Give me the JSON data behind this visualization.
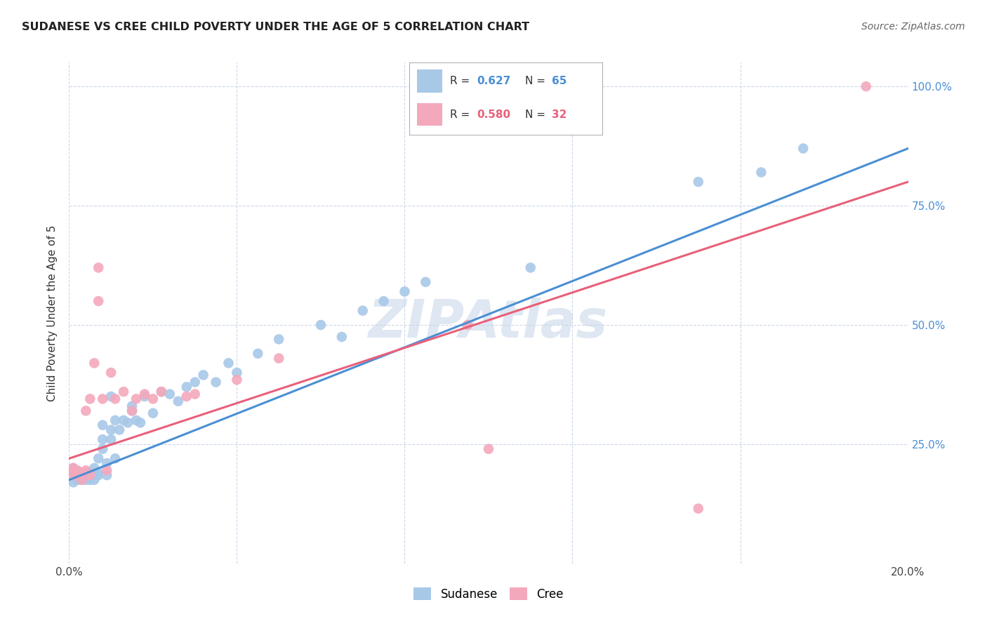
{
  "title": "SUDANESE VS CREE CHILD POVERTY UNDER THE AGE OF 5 CORRELATION CHART",
  "source": "Source: ZipAtlas.com",
  "ylabel": "Child Poverty Under the Age of 5",
  "xlim": [
    0.0,
    0.2
  ],
  "ylim": [
    0.0,
    1.05
  ],
  "xticks": [
    0.0,
    0.04,
    0.08,
    0.12,
    0.16,
    0.2
  ],
  "yticks": [
    0.0,
    0.25,
    0.5,
    0.75,
    1.0
  ],
  "xticklabels": [
    "0.0%",
    "",
    "",
    "",
    "",
    "20.0%"
  ],
  "yticklabels_right": [
    "",
    "25.0%",
    "50.0%",
    "75.0%",
    "100.0%"
  ],
  "sudanese_R": "0.627",
  "sudanese_N": "65",
  "cree_R": "0.580",
  "cree_N": "32",
  "sudanese_color": "#a8c8e8",
  "cree_color": "#f4a8bc",
  "sudanese_line_color": "#4a8fd4",
  "cree_line_color": "#e8607a",
  "watermark": "ZIPAtlas",
  "background_color": "#ffffff",
  "grid_color": "#c8d4e8",
  "sudanese_x": [
    0.0005,
    0.001,
    0.001,
    0.0015,
    0.002,
    0.002,
    0.002,
    0.0025,
    0.003,
    0.003,
    0.003,
    0.003,
    0.004,
    0.004,
    0.004,
    0.005,
    0.005,
    0.005,
    0.005,
    0.006,
    0.006,
    0.006,
    0.007,
    0.007,
    0.007,
    0.008,
    0.008,
    0.008,
    0.009,
    0.009,
    0.01,
    0.01,
    0.01,
    0.011,
    0.011,
    0.012,
    0.013,
    0.014,
    0.015,
    0.015,
    0.016,
    0.017,
    0.018,
    0.02,
    0.022,
    0.024,
    0.026,
    0.028,
    0.03,
    0.032,
    0.035,
    0.038,
    0.04,
    0.045,
    0.05,
    0.06,
    0.065,
    0.07,
    0.075,
    0.08,
    0.085,
    0.11,
    0.15,
    0.165,
    0.175
  ],
  "sudanese_y": [
    0.185,
    0.2,
    0.17,
    0.195,
    0.175,
    0.185,
    0.19,
    0.18,
    0.175,
    0.18,
    0.185,
    0.19,
    0.18,
    0.175,
    0.19,
    0.175,
    0.18,
    0.185,
    0.19,
    0.2,
    0.185,
    0.175,
    0.22,
    0.19,
    0.185,
    0.29,
    0.24,
    0.26,
    0.21,
    0.185,
    0.35,
    0.28,
    0.26,
    0.3,
    0.22,
    0.28,
    0.3,
    0.295,
    0.32,
    0.33,
    0.3,
    0.295,
    0.35,
    0.315,
    0.36,
    0.355,
    0.34,
    0.37,
    0.38,
    0.395,
    0.38,
    0.42,
    0.4,
    0.44,
    0.47,
    0.5,
    0.475,
    0.53,
    0.55,
    0.57,
    0.59,
    0.62,
    0.8,
    0.82,
    0.87
  ],
  "cree_x": [
    0.0005,
    0.001,
    0.0015,
    0.002,
    0.002,
    0.003,
    0.003,
    0.004,
    0.004,
    0.005,
    0.005,
    0.006,
    0.007,
    0.007,
    0.008,
    0.009,
    0.01,
    0.011,
    0.013,
    0.015,
    0.016,
    0.018,
    0.02,
    0.022,
    0.028,
    0.03,
    0.04,
    0.05,
    0.095,
    0.1,
    0.15,
    0.19
  ],
  "cree_y": [
    0.19,
    0.2,
    0.185,
    0.185,
    0.195,
    0.175,
    0.19,
    0.32,
    0.195,
    0.345,
    0.185,
    0.42,
    0.55,
    0.62,
    0.345,
    0.195,
    0.4,
    0.345,
    0.36,
    0.32,
    0.345,
    0.355,
    0.345,
    0.36,
    0.35,
    0.355,
    0.385,
    0.43,
    0.5,
    0.24,
    0.115,
    1.0
  ]
}
